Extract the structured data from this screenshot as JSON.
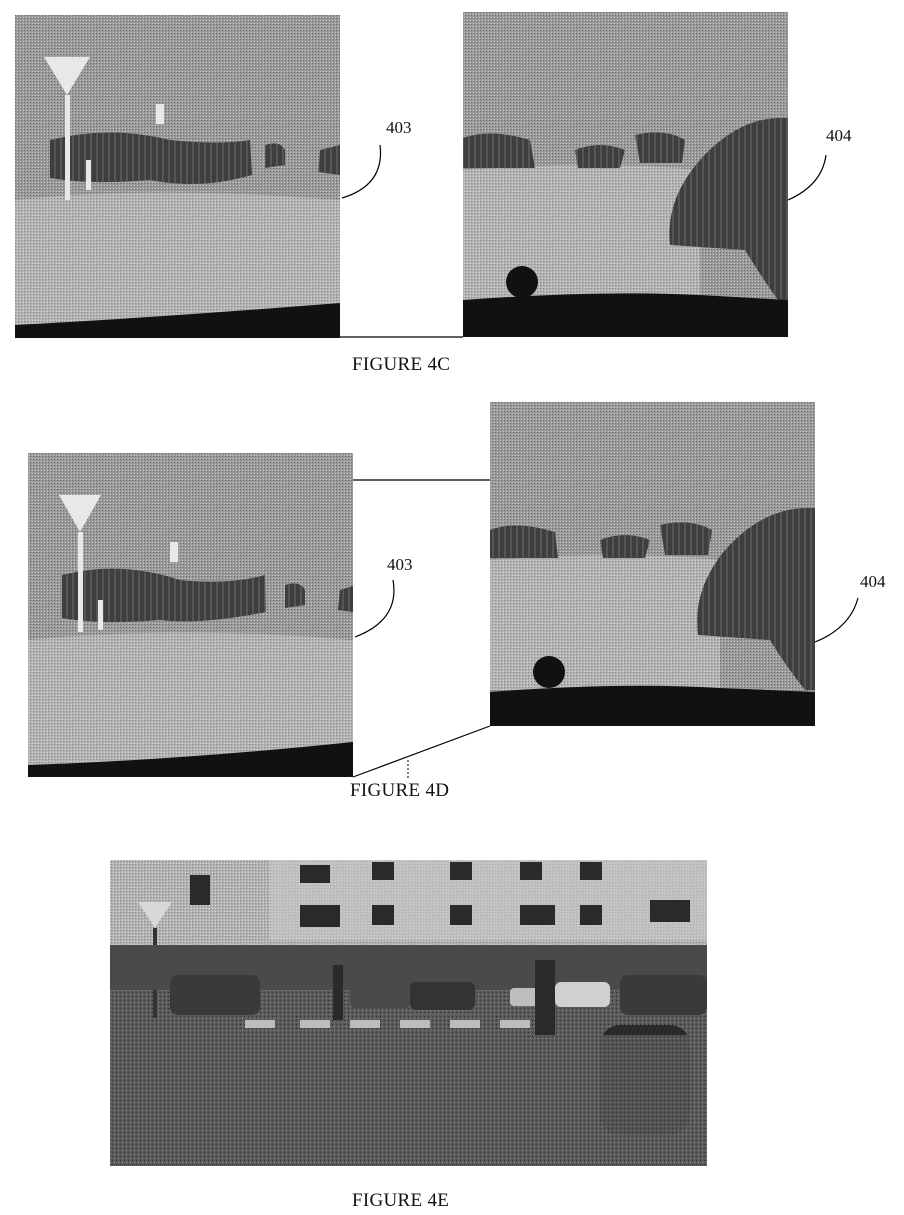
{
  "figures": [
    {
      "caption": "FIGURE 4C",
      "left_label": "403",
      "right_label": "404"
    },
    {
      "caption": "FIGURE 4D",
      "left_label": "403",
      "right_label": "404"
    },
    {
      "caption": "FIGURE 4E"
    }
  ],
  "colors": {
    "sky_gray": "#8e8e8e",
    "ground_gray": "#a9a9a9",
    "dark_region": "#3a3a3a",
    "road_black": "#111111",
    "sign_white": "#e8e8e8"
  }
}
